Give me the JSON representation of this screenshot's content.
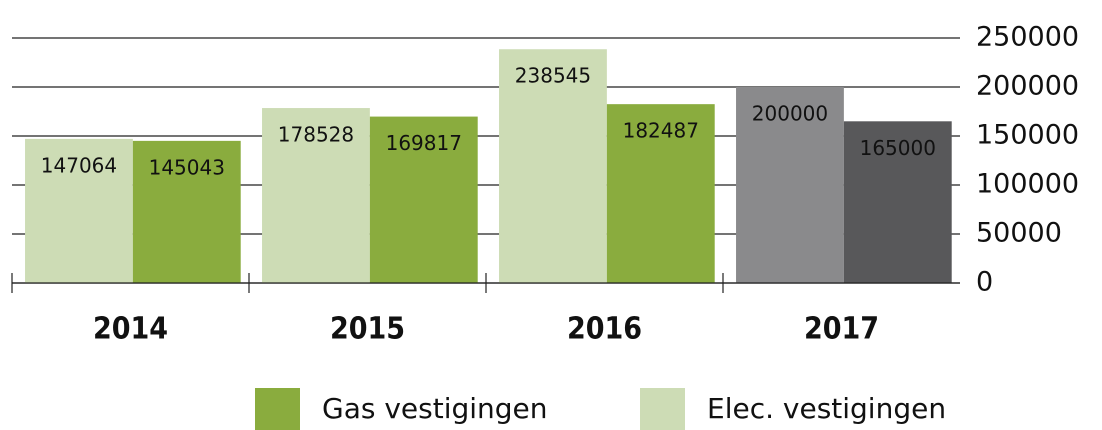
{
  "chart_data": {
    "type": "bar",
    "categories": [
      "2014",
      "2015",
      "2016",
      "2017"
    ],
    "series": [
      {
        "name": "Elec. vestigingen",
        "color": "#cddcb5",
        "colors": [
          "#cddcb5",
          "#cddcb5",
          "#cddcb5",
          "#8a8a8c"
        ],
        "values": [
          147064,
          178528,
          238545,
          200000
        ]
      },
      {
        "name": "Gas vestigingen",
        "color": "#8aac3e",
        "colors": [
          "#8aac3e",
          "#8aac3e",
          "#8aac3e",
          "#58585a"
        ],
        "values": [
          145043,
          169817,
          182487,
          165000
        ]
      }
    ],
    "ylim": [
      0,
      250000
    ],
    "yticks": [
      0,
      50000,
      100000,
      150000,
      200000,
      250000
    ],
    "grid": true,
    "y_axis_side": "right"
  }
}
